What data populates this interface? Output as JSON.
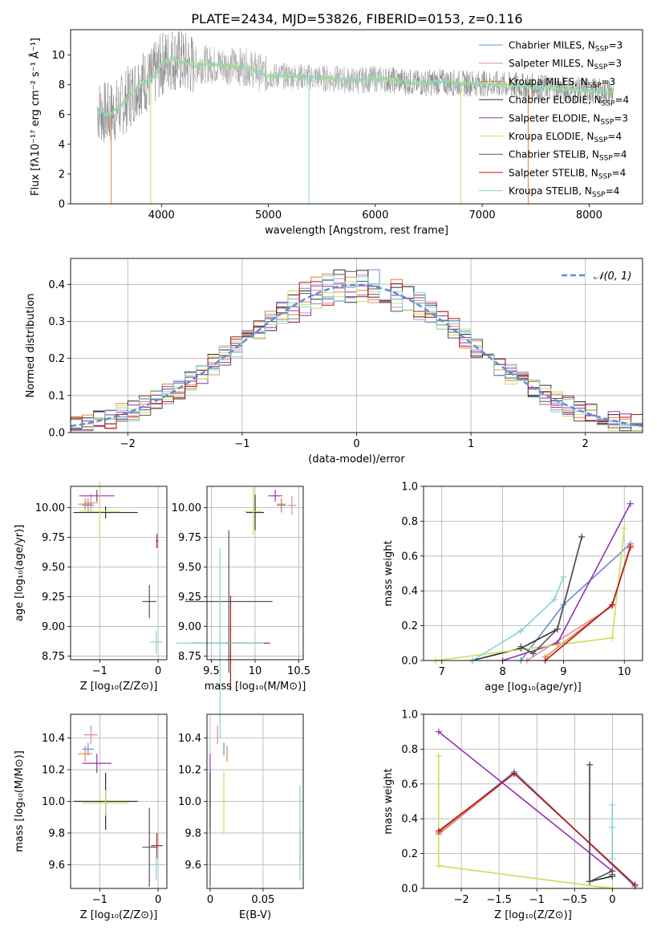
{
  "colors": {
    "chabrier_miles": "#6a8fd6",
    "salpeter_miles": "#e08aa6",
    "kroupa_miles": "#e8823a",
    "chabrier_elodie": "#2b2b2b",
    "salpeter_elodie": "#9432b0",
    "kroupa_elodie": "#c8e05a",
    "chabrier_stelib": "#555555",
    "salpeter_stelib": "#b01818",
    "kroupa_stelib": "#84d2d6",
    "normal": "#5b8fd6",
    "grid": "#b0b0b0"
  },
  "chart_data": [
    {
      "type": "line",
      "id": "spectrum",
      "title": "PLATE=2434, MJD=53826, FIBERID=0153, z=0.116",
      "xlabel": "wavelength [Angstrom, rest frame]",
      "ylabel": "Flux [fλ10⁻¹⁷ erg cm⁻² s⁻¹ Å⁻¹]",
      "xlim": [
        3150,
        8500
      ],
      "ylim": [
        0,
        11.7
      ],
      "xticks": [
        4000,
        5000,
        6000,
        7000,
        8000
      ],
      "yticks": [
        0,
        2,
        4,
        6,
        8,
        10
      ],
      "grid": false,
      "legend_position": "top-right",
      "data_continuum": {
        "x": [
          3400,
          3500,
          3600,
          3700,
          3800,
          3900,
          4000,
          4100,
          4200,
          4300,
          4400,
          4600,
          4800,
          5000,
          5200,
          5400,
          5600,
          5800,
          6000,
          6200,
          6400,
          6600,
          6800,
          7000,
          7200,
          7400,
          7600,
          7800,
          8000,
          8200
        ],
        "y": [
          6.3,
          6.0,
          6.4,
          7.2,
          8.2,
          8.3,
          9.4,
          9.8,
          9.5,
          9.3,
          9.4,
          9.3,
          9.2,
          8.6,
          8.6,
          8.5,
          8.4,
          8.3,
          8.4,
          8.3,
          8.1,
          8.2,
          8.1,
          8.1,
          8.0,
          7.9,
          7.8,
          7.7,
          7.6,
          7.5
        ]
      },
      "spikes_down": [
        {
          "x": 3530,
          "y": 0
        },
        {
          "x": 3900,
          "y": 0
        },
        {
          "x": 5380,
          "y": 0
        },
        {
          "x": 6800,
          "y": 0
        },
        {
          "x": 7430,
          "y": 0
        }
      ],
      "series": [
        {
          "name": "Chabrier MILES, N",
          "sub": "SSP",
          "suffix": "=3",
          "color_key": "chabrier_miles"
        },
        {
          "name": "Salpeter MILES, N",
          "sub": "SSP",
          "suffix": "=3",
          "color_key": "salpeter_miles"
        },
        {
          "name": "Kroupa MILES, N",
          "sub": "SSP",
          "suffix": "=3",
          "color_key": "kroupa_miles"
        },
        {
          "name": "Chabrier ELODIE, N",
          "sub": "SSP",
          "suffix": "=4",
          "color_key": "chabrier_elodie"
        },
        {
          "name": "Salpeter ELODIE, N",
          "sub": "SSP",
          "suffix": "=3",
          "color_key": "salpeter_elodie"
        },
        {
          "name": "Kroupa ELODIE, N",
          "sub": "SSP",
          "suffix": "=4",
          "color_key": "kroupa_elodie"
        },
        {
          "name": "Chabrier STELIB, N",
          "sub": "SSP",
          "suffix": "=4",
          "color_key": "chabrier_stelib"
        },
        {
          "name": "Salpeter STELIB, N",
          "sub": "SSP",
          "suffix": "=4",
          "color_key": "salpeter_stelib"
        },
        {
          "name": "Kroupa STELIB, N",
          "sub": "SSP",
          "suffix": "=4",
          "color_key": "kroupa_stelib"
        }
      ]
    },
    {
      "type": "line",
      "id": "residuals",
      "xlabel": "(data-model)/error",
      "ylabel": "Normed distribution",
      "xlim": [
        -2.5,
        2.5
      ],
      "ylim": [
        0,
        0.47
      ],
      "xticks": [
        -2,
        -1,
        0,
        1,
        2
      ],
      "yticks": [
        0.0,
        0.1,
        0.2,
        0.3,
        0.4
      ],
      "grid": true,
      "legend_position": "top-right",
      "normal_label": "𝒩(0, 1)",
      "bins_step": 0.1,
      "series_note": "9 step histograms approximating N(0,1)"
    },
    {
      "type": "scatter",
      "id": "age_vs_Z",
      "xlabel": "Z [log₁₀(Z/Z⊙)]",
      "ylabel": "age  [log₁₀(age/yr)]",
      "xlim": [
        -1.5,
        0.15
      ],
      "ylim": [
        8.72,
        10.18
      ],
      "xticks": [
        -1,
        0
      ],
      "yticks": [
        8.75,
        9.0,
        9.25,
        9.5,
        9.75,
        10.0
      ],
      "grid": true,
      "points": [
        {
          "c": "chabrier_miles",
          "x": -1.2,
          "y": 10.02,
          "ex": 0.1,
          "ey": 0.06
        },
        {
          "c": "salpeter_miles",
          "x": -1.15,
          "y": 10.04,
          "ex": 0.12,
          "ey": 0.08
        },
        {
          "c": "kroupa_miles",
          "x": -1.25,
          "y": 10.03,
          "ex": 0.12,
          "ey": 0.05
        },
        {
          "c": "chabrier_elodie",
          "x": -0.9,
          "y": 9.96,
          "ex": 0.55,
          "ey": 0.05
        },
        {
          "c": "salpeter_elodie",
          "x": -1.05,
          "y": 10.1,
          "ex": 0.3,
          "ey": 0.05
        },
        {
          "c": "kroupa_elodie",
          "x": -1.0,
          "y": 9.97,
          "ex": 0.35,
          "ey": 0.25
        },
        {
          "c": "chabrier_stelib",
          "x": -0.15,
          "y": 9.21,
          "ex": 0.12,
          "ey": 0.14
        },
        {
          "c": "salpeter_stelib",
          "x": -0.02,
          "y": 9.72,
          "ex": 0.02,
          "ey": 0.06
        },
        {
          "c": "kroupa_stelib",
          "x": -0.03,
          "y": 8.87,
          "ex": 0.1,
          "ey": 0.1
        }
      ]
    },
    {
      "type": "scatter",
      "id": "age_vs_mass",
      "xlabel": "mass [log₁₀(M/M⊙)]",
      "ylabel": "",
      "xlim": [
        9.45,
        10.55
      ],
      "ylim": [
        8.72,
        10.18
      ],
      "xticks": [
        9.5,
        10.0,
        10.5
      ],
      "yticks": [
        8.75,
        9.0,
        9.25,
        9.5,
        9.75,
        10.0
      ],
      "grid": true,
      "points": [
        {
          "c": "chabrier_miles",
          "x": 10.3,
          "y": 10.02,
          "ex": 0.05,
          "ey": 0.06
        },
        {
          "c": "salpeter_miles",
          "x": 10.42,
          "y": 10.02,
          "ex": 0.05,
          "ey": 0.08
        },
        {
          "c": "kroupa_miles",
          "x": 10.3,
          "y": 10.03,
          "ex": 0.05,
          "ey": 0.05
        },
        {
          "c": "chabrier_elodie",
          "x": 10.0,
          "y": 9.96,
          "ex": 0.1,
          "ey": 0.15
        },
        {
          "c": "salpeter_elodie",
          "x": 10.23,
          "y": 10.1,
          "ex": 0.08,
          "ey": 0.05
        },
        {
          "c": "kroupa_elodie",
          "x": 9.98,
          "y": 9.97,
          "ex": 0.1,
          "ey": 0.2
        },
        {
          "c": "chabrier_stelib",
          "x": 9.7,
          "y": 9.21,
          "ex": 0.5,
          "ey": 0.6
        },
        {
          "c": "salpeter_stelib",
          "x": 9.72,
          "y": 8.86,
          "ex": 0.45,
          "ey": 0.4
        },
        {
          "c": "kroupa_stelib",
          "x": 9.6,
          "y": 8.86,
          "ex": 0.5,
          "ey": 0.8
        }
      ]
    },
    {
      "type": "line",
      "id": "massweight_vs_age",
      "xlabel": "age  [log₁₀(age/yr)]",
      "ylabel": "mass weight",
      "xlim": [
        6.7,
        10.3
      ],
      "ylim": [
        0,
        1.0
      ],
      "xticks": [
        7,
        8,
        9,
        10
      ],
      "yticks": [
        0.0,
        0.2,
        0.4,
        0.6,
        0.8,
        1.0
      ],
      "grid": true,
      "series": [
        {
          "c": "chabrier_miles",
          "x": [
            8.3,
            9.0,
            10.1
          ],
          "y": [
            0.0,
            0.32,
            0.67
          ]
        },
        {
          "c": "salpeter_miles",
          "x": [
            8.4,
            9.8,
            10.1
          ],
          "y": [
            0.0,
            0.31,
            0.66
          ]
        },
        {
          "c": "kroupa_miles",
          "x": [
            8.7,
            9.8,
            10.1
          ],
          "y": [
            0.02,
            0.32,
            0.66
          ]
        },
        {
          "c": "chabrier_elodie",
          "x": [
            7.5,
            8.3,
            8.9,
            9.3
          ],
          "y": [
            0.0,
            0.07,
            0.18,
            0.71
          ]
        },
        {
          "c": "salpeter_elodie",
          "x": [
            8.0,
            8.9,
            10.1
          ],
          "y": [
            0.0,
            0.1,
            0.9
          ]
        },
        {
          "c": "kroupa_elodie",
          "x": [
            6.9,
            9.8,
            10.0
          ],
          "y": [
            0.0,
            0.13,
            0.76
          ]
        },
        {
          "c": "chabrier_stelib",
          "x": [
            8.3,
            8.5,
            8.9,
            9.3
          ],
          "y": [
            0.08,
            0.04,
            0.18,
            0.71
          ]
        },
        {
          "c": "salpeter_stelib",
          "x": [
            8.7,
            9.8,
            10.1
          ],
          "y": [
            0.0,
            0.32,
            0.65
          ]
        },
        {
          "c": "kroupa_stelib",
          "x": [
            7.5,
            8.3,
            8.85,
            9.0
          ],
          "y": [
            0.0,
            0.17,
            0.35,
            0.48
          ]
        }
      ]
    },
    {
      "type": "scatter",
      "id": "mass_vs_Z",
      "xlabel": "Z [log₁₀(Z/Z⊙)]",
      "ylabel": "mass [log₁₀(M/M⊙)]",
      "xlim": [
        -1.5,
        0.15
      ],
      "ylim": [
        9.45,
        10.55
      ],
      "xticks": [
        -1,
        0
      ],
      "yticks": [
        9.6,
        9.8,
        10.0,
        10.2,
        10.4
      ],
      "grid": true,
      "points": [
        {
          "c": "chabrier_miles",
          "x": -1.2,
          "y": 10.33,
          "ex": 0.1,
          "ey": 0.04
        },
        {
          "c": "salpeter_miles",
          "x": -1.15,
          "y": 10.42,
          "ex": 0.12,
          "ey": 0.06
        },
        {
          "c": "kroupa_miles",
          "x": -1.25,
          "y": 10.3,
          "ex": 0.12,
          "ey": 0.05
        },
        {
          "c": "chabrier_elodie",
          "x": -0.9,
          "y": 10.0,
          "ex": 0.55,
          "ey": 0.18
        },
        {
          "c": "salpeter_elodie",
          "x": -1.05,
          "y": 10.24,
          "ex": 0.25,
          "ey": 0.06
        },
        {
          "c": "kroupa_elodie",
          "x": -0.9,
          "y": 9.99,
          "ex": 0.4,
          "ey": 0.08
        },
        {
          "c": "chabrier_stelib",
          "x": -0.15,
          "y": 9.71,
          "ex": 0.12,
          "ey": 0.25
        },
        {
          "c": "salpeter_stelib",
          "x": -0.02,
          "y": 9.72,
          "ex": 0.1,
          "ey": 0.08
        },
        {
          "c": "kroupa_stelib",
          "x": -0.03,
          "y": 9.6,
          "ex": 0.1,
          "ey": 0.1
        }
      ]
    },
    {
      "type": "scatter",
      "id": "mass_vs_ebv",
      "xlabel": "E(B-V)",
      "ylabel": "",
      "xlim": [
        -0.003,
        0.088
      ],
      "ylim": [
        9.45,
        10.55
      ],
      "xticks": [
        0.0,
        0.05
      ],
      "yticks": [
        9.6,
        9.8,
        10.0,
        10.2,
        10.4
      ],
      "grid": true,
      "points": [
        {
          "c": "chabrier_miles",
          "x": 0.013,
          "y": 10.33,
          "ex": 0,
          "ey": 0.04
        },
        {
          "c": "salpeter_miles",
          "x": 0.007,
          "y": 10.42,
          "ex": 0,
          "ey": 0.06
        },
        {
          "c": "kroupa_miles",
          "x": 0.016,
          "y": 10.3,
          "ex": 0,
          "ey": 0.05
        },
        {
          "c": "chabrier_elodie",
          "x": 0.0,
          "y": 10.0,
          "ex": 0,
          "ey": 0.18
        },
        {
          "c": "salpeter_elodie",
          "x": 0.0,
          "y": 10.24,
          "ex": 0,
          "ey": 0.06
        },
        {
          "c": "kroupa_elodie",
          "x": 0.013,
          "y": 9.99,
          "ex": 0,
          "ey": 0.2
        },
        {
          "c": "chabrier_stelib",
          "x": 0.0,
          "y": 9.71,
          "ex": 0,
          "ey": 0.25
        },
        {
          "c": "salpeter_stelib",
          "x": 0.085,
          "y": 9.72,
          "ex": 0,
          "ey": 0.1
        },
        {
          "c": "kroupa_stelib",
          "x": 0.085,
          "y": 9.8,
          "ex": 0,
          "ey": 0.3
        }
      ]
    },
    {
      "type": "line",
      "id": "massweight_vs_Z",
      "xlabel": "Z [log₁₀(Z/Z⊙)]",
      "ylabel": "mass weight",
      "xlim": [
        -2.5,
        0.4
      ],
      "ylim": [
        0,
        1.0
      ],
      "xticks": [
        -2.0,
        -1.5,
        -1.0,
        -0.5,
        0.0
      ],
      "yticks": [
        0.0,
        0.2,
        0.4,
        0.6,
        0.8,
        1.0
      ],
      "grid": true,
      "series": [
        {
          "c": "chabrier_miles",
          "x": [
            -2.3,
            -1.3,
            0.3
          ],
          "y": [
            0.32,
            0.67,
            0.01
          ]
        },
        {
          "c": "salpeter_miles",
          "x": [
            -2.3,
            -1.3,
            0.3
          ],
          "y": [
            0.31,
            0.66,
            0.02
          ]
        },
        {
          "c": "kroupa_miles",
          "x": [
            -2.3,
            -1.3,
            0.3
          ],
          "y": [
            0.32,
            0.66,
            0.02
          ]
        },
        {
          "c": "chabrier_elodie",
          "x": [
            -0.3,
            -0.3,
            0.0
          ],
          "y": [
            0.71,
            0.04,
            0.07
          ]
        },
        {
          "c": "salpeter_elodie",
          "x": [
            -2.3,
            0.0
          ],
          "y": [
            0.9,
            0.1
          ]
        },
        {
          "c": "kroupa_elodie",
          "x": [
            -2.3,
            -2.3,
            0.0
          ],
          "y": [
            0.76,
            0.13,
            0.0
          ]
        },
        {
          "c": "chabrier_stelib",
          "x": [
            -0.3,
            -0.3,
            0.0,
            0.0
          ],
          "y": [
            0.71,
            0.04,
            0.1,
            0.08
          ]
        },
        {
          "c": "salpeter_stelib",
          "x": [
            -2.3,
            -1.3,
            0.3
          ],
          "y": [
            0.33,
            0.66,
            0.02
          ]
        },
        {
          "c": "kroupa_stelib",
          "x": [
            0.0,
            0.0,
            0.0
          ],
          "y": [
            0.48,
            0.35,
            0.17
          ]
        }
      ]
    }
  ]
}
